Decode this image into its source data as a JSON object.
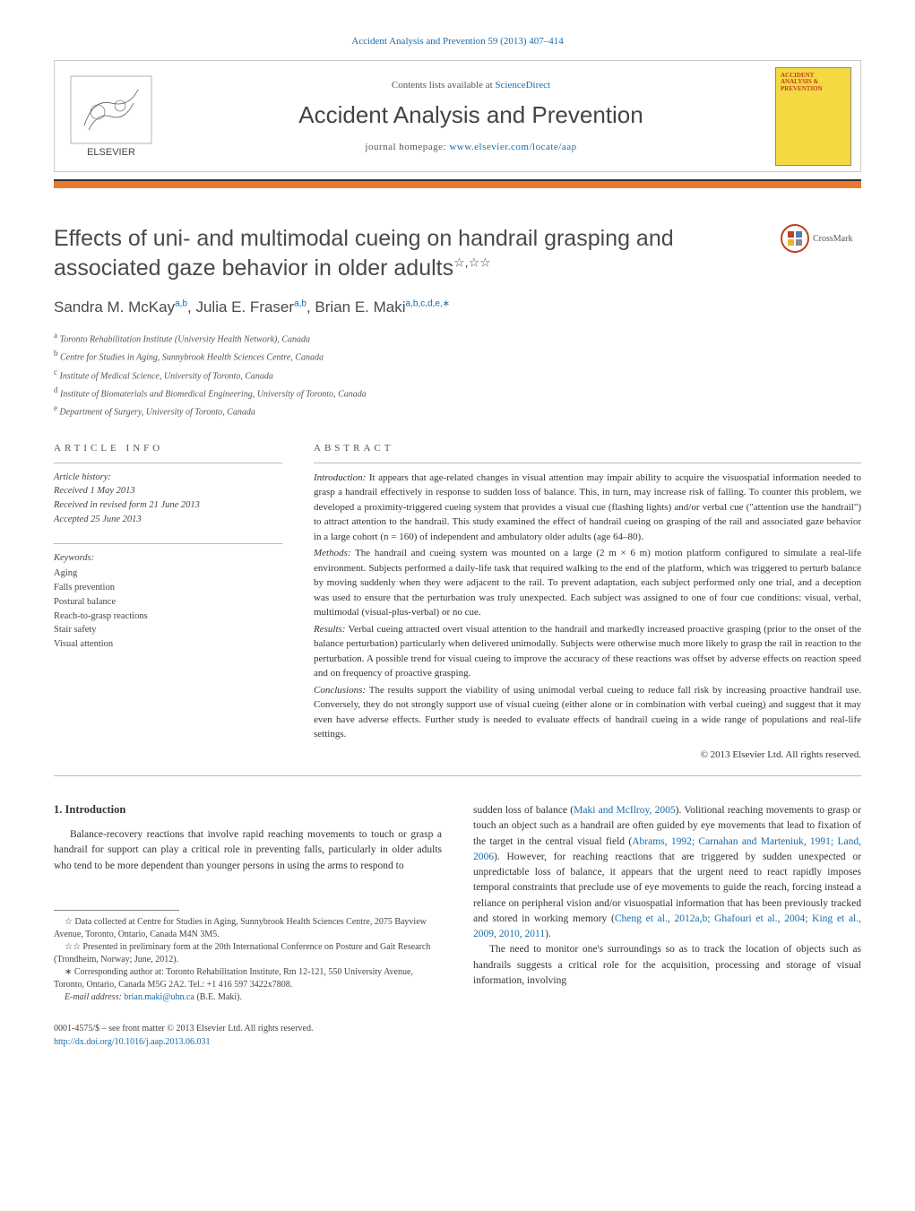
{
  "header": {
    "citation": "Accident Analysis and Prevention 59 (2013) 407–414",
    "contents_text": "Contents lists available at ",
    "contents_link": "ScienceDirect",
    "journal_name": "Accident Analysis and Prevention",
    "homepage_label": "journal homepage: ",
    "homepage_url": "www.elsevier.com/locate/aap",
    "cover_text": "ACCIDENT ANALYSIS & PREVENTION"
  },
  "colors": {
    "link": "#1a6ba8",
    "orange_bar": "#e8792e",
    "cover_bg": "#f5d943",
    "cover_text": "#c04020",
    "crossmark_ring": "#c04020"
  },
  "crossmark": {
    "label": "CrossMark"
  },
  "title": "Effects of uni- and multimodal cueing on handrail grasping and associated gaze behavior in older adults",
  "title_stars": "☆,☆☆",
  "authors_html": "Sandra M. McKay<sup>a,b</sup>, Julia E. Fraser<sup>a,b</sup>, Brian E. Maki<sup>a,b,c,d,e,∗</sup>",
  "affiliations": [
    {
      "sup": "a",
      "text": "Toronto Rehabilitation Institute (University Health Network), Canada"
    },
    {
      "sup": "b",
      "text": "Centre for Studies in Aging, Sunnybrook Health Sciences Centre, Canada"
    },
    {
      "sup": "c",
      "text": "Institute of Medical Science, University of Toronto, Canada"
    },
    {
      "sup": "d",
      "text": "Institute of Biomaterials and Biomedical Engineering, University of Toronto, Canada"
    },
    {
      "sup": "e",
      "text": "Department of Surgery, University of Toronto, Canada"
    }
  ],
  "article_info": {
    "heading": "ARTICLE INFO",
    "history_label": "Article history:",
    "history_received": "Received 1 May 2013",
    "history_revised": "Received in revised form 21 June 2013",
    "history_accepted": "Accepted 25 June 2013",
    "keywords_label": "Keywords:",
    "keywords": [
      "Aging",
      "Falls prevention",
      "Postural balance",
      "Reach-to-grasp reactions",
      "Stair safety",
      "Visual attention"
    ]
  },
  "abstract": {
    "heading": "ABSTRACT",
    "intro_label": "Introduction:",
    "intro": "It appears that age-related changes in visual attention may impair ability to acquire the visuospatial information needed to grasp a handrail effectively in response to sudden loss of balance. This, in turn, may increase risk of falling. To counter this problem, we developed a proximity-triggered cueing system that provides a visual cue (flashing lights) and/or verbal cue (\"attention use the handrail\") to attract attention to the handrail. This study examined the effect of handrail cueing on grasping of the rail and associated gaze behavior in a large cohort (n = 160) of independent and ambulatory older adults (age 64–80).",
    "methods_label": "Methods:",
    "methods": "The handrail and cueing system was mounted on a large (2 m × 6 m) motion platform configured to simulate a real-life environment. Subjects performed a daily-life task that required walking to the end of the platform, which was triggered to perturb balance by moving suddenly when they were adjacent to the rail. To prevent adaptation, each subject performed only one trial, and a deception was used to ensure that the perturbation was truly unexpected. Each subject was assigned to one of four cue conditions: visual, verbal, multimodal (visual-plus-verbal) or no cue.",
    "results_label": "Results:",
    "results": "Verbal cueing attracted overt visual attention to the handrail and markedly increased proactive grasping (prior to the onset of the balance perturbation) particularly when delivered unimodally. Subjects were otherwise much more likely to grasp the rail in reaction to the perturbation. A possible trend for visual cueing to improve the accuracy of these reactions was offset by adverse effects on reaction speed and on frequency of proactive grasping.",
    "conclusions_label": "Conclusions:",
    "conclusions": "The results support the viability of using unimodal verbal cueing to reduce fall risk by increasing proactive handrail use. Conversely, they do not strongly support use of visual cueing (either alone or in combination with verbal cueing) and suggest that it may even have adverse effects. Further study is needed to evaluate effects of handrail cueing in a wide range of populations and real-life settings.",
    "copyright": "© 2013 Elsevier Ltd. All rights reserved."
  },
  "body": {
    "section_number": "1.",
    "section_title": "Introduction",
    "left_p1": "Balance-recovery reactions that involve rapid reaching movements to touch or grasp a handrail for support can play a critical role in preventing falls, particularly in older adults who tend to be more dependent than younger persons in using the arms to respond to",
    "right_p1_a": "sudden loss of balance (",
    "right_p1_link1": "Maki and McIlroy, 2005",
    "right_p1_b": "). Volitional reaching movements to grasp or touch an object such as a handrail are often guided by eye movements that lead to fixation of the target in the central visual field (",
    "right_p1_link2": "Abrams, 1992; Carnahan and Marteniuk, 1991; Land, 2006",
    "right_p1_c": "). However, for reaching reactions that are triggered by sudden unexpected or unpredictable loss of balance, it appears that the urgent need to react rapidly imposes temporal constraints that preclude use of eye movements to guide the reach, forcing instead a reliance on peripheral vision and/or visuospatial information that has been previously tracked and stored in working memory (",
    "right_p1_link3": "Cheng et al., 2012a,b; Ghafouri et al., 2004; King et al., 2009, 2010, 2011",
    "right_p1_d": ").",
    "right_p2": "The need to monitor one's surroundings so as to track the location of objects such as handrails suggests a critical role for the acquisition, processing and storage of visual information, involving"
  },
  "footnotes": {
    "star1": "☆ Data collected at Centre for Studies in Aging, Sunnybrook Health Sciences Centre, 2075 Bayview Avenue, Toronto, Ontario, Canada M4N 3M5.",
    "star2": "☆☆ Presented in preliminary form at the 20th International Conference on Posture and Gait Research (Trondheim, Norway; June, 2012).",
    "corr": "∗ Corresponding author at: Toronto Rehabilitation Institute, Rm 12-121, 550 University Avenue, Toronto, Ontario, Canada M5G 2A2. Tel.: +1 416 597 3422x7808.",
    "email_label": "E-mail address: ",
    "email": "brian.maki@uhn.ca",
    "email_suffix": " (B.E. Maki)."
  },
  "footer": {
    "line1": "0001-4575/$ – see front matter © 2013 Elsevier Ltd. All rights reserved.",
    "doi": "http://dx.doi.org/10.1016/j.aap.2013.06.031"
  }
}
